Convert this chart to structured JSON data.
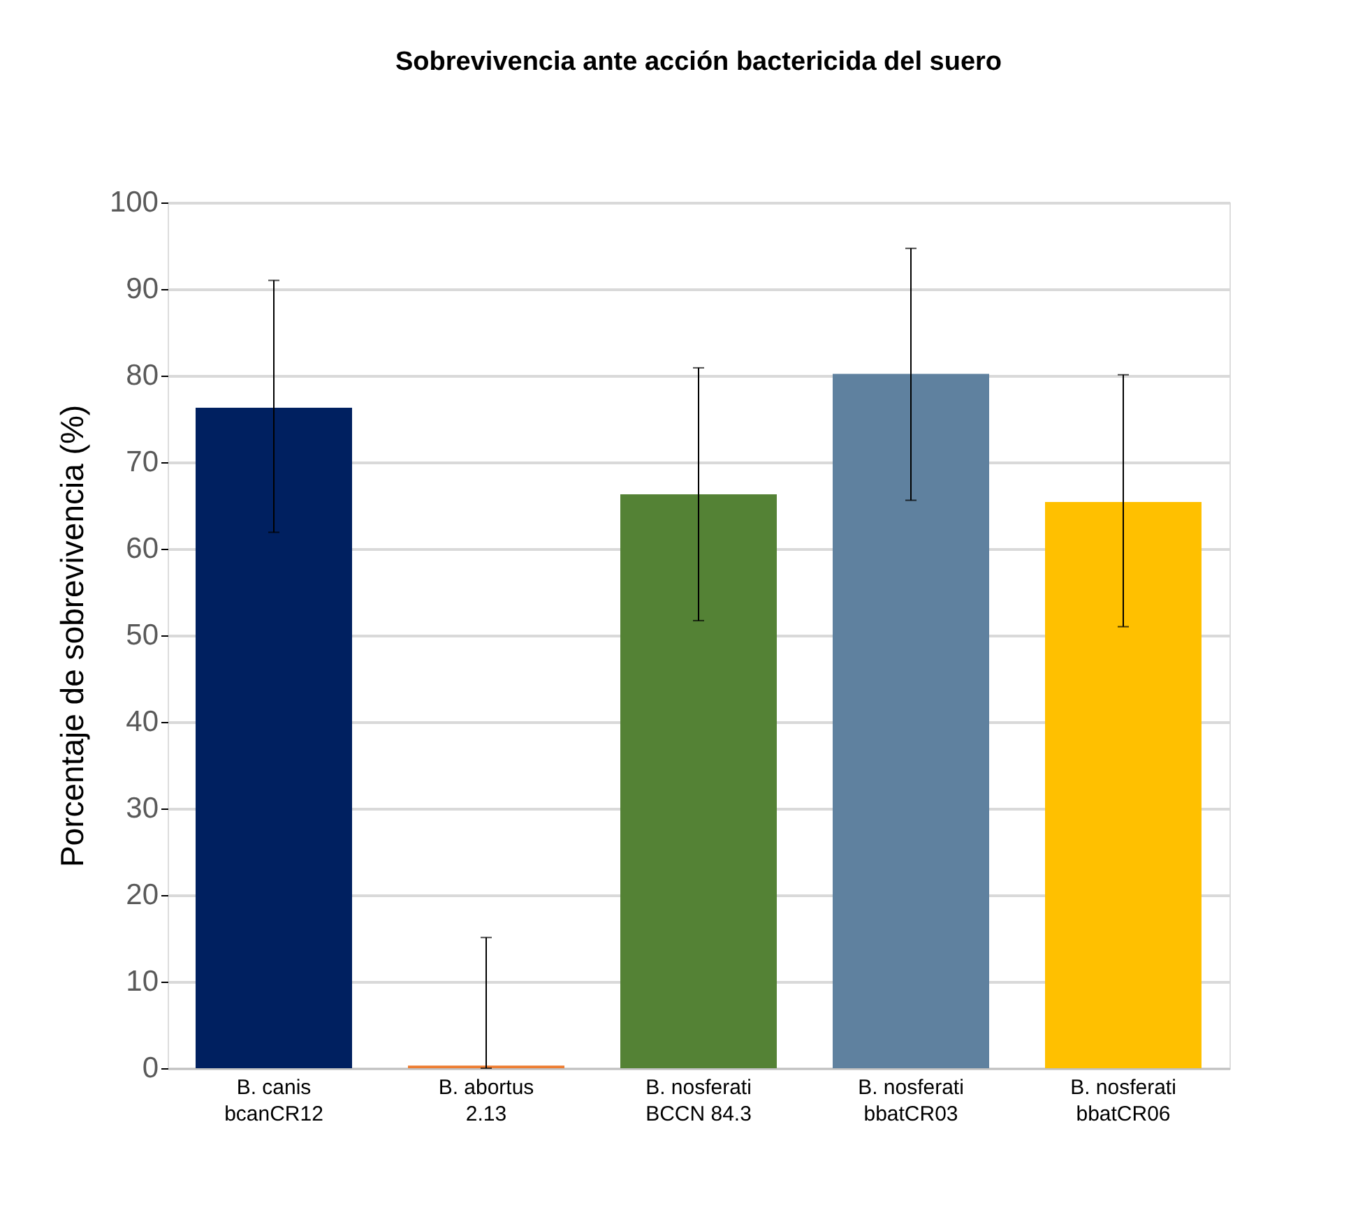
{
  "chart_data": {
    "type": "bar",
    "title": "Sobrevivencia  ante acción bactericida del suero",
    "ylabel": "Porcentaje de sobrevivencia (%)",
    "categories": [
      "B. canis\nbcanCR12",
      "B. abortus\n2.13",
      "B. nosferati\nBCCN 84.3",
      "B. nosferati\nbbatCR03",
      "B. nosferati\nbbatCR06"
    ],
    "values": [
      76.3,
      0.3,
      66.3,
      80.2,
      65.4
    ],
    "colors": [
      "#002060",
      "#ed7d31",
      "#548235",
      "#5f819f",
      "#ffc000"
    ],
    "errors": [
      [
        61.9,
        91.0
      ],
      [
        0,
        15.1
      ],
      [
        51.7,
        80.9
      ],
      [
        65.6,
        94.7
      ],
      [
        51.0,
        80.1
      ]
    ],
    "ylim": [
      0,
      100
    ],
    "yticks": [
      0,
      10,
      20,
      30,
      40,
      50,
      60,
      70,
      80,
      90,
      100
    ],
    "grid": "y"
  }
}
